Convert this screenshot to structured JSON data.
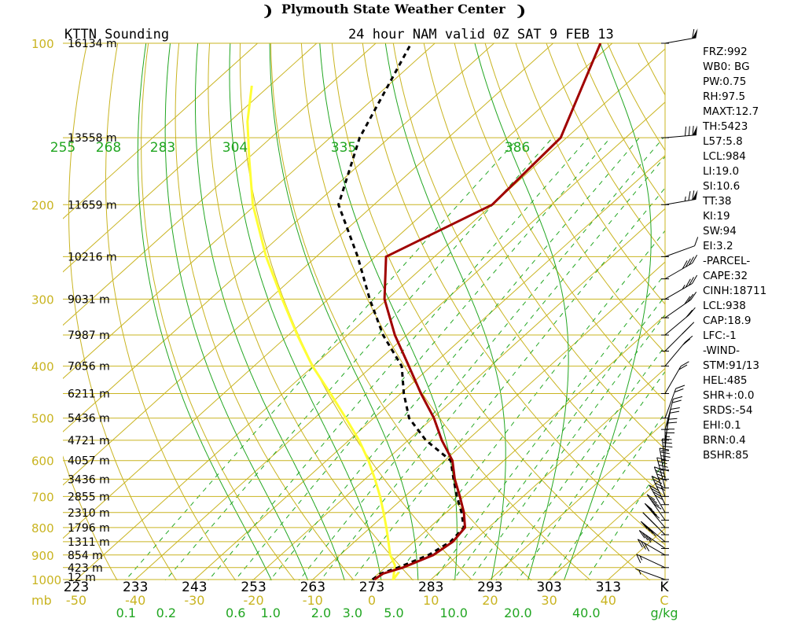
{
  "banner": {
    "title": "Plymouth State Weather Center",
    "left_logo": "❩",
    "right_logo": "❩"
  },
  "colors": {
    "isobar": "#c9b421",
    "isotherm": "#c9b421",
    "dry_adiabat": "#c9b421",
    "moist_adiabat": "#22a622",
    "mixing_ratio": "#22a622",
    "temperature": "#a00000",
    "dewpoint": "#000000",
    "parcel": "#ffff33",
    "wind": "#000000"
  },
  "chart_data": {
    "type": "skew-t",
    "title": "KTTN Sounding",
    "subtitle": "24 hour NAM valid 0Z SAT 9 FEB 13",
    "temp_axis_unit": "C",
    "mix_axis_unit": "g/kg",
    "pressure_axis_unit": "mb",
    "theta_axis_unit": "K",
    "pressure_labels": [
      {
        "p": 100,
        "text": "100"
      },
      {
        "p": 200,
        "text": "200"
      },
      {
        "p": 300,
        "text": "300"
      },
      {
        "p": 400,
        "text": "400"
      },
      {
        "p": 500,
        "text": "500"
      },
      {
        "p": 600,
        "text": "600"
      },
      {
        "p": 700,
        "text": "700"
      },
      {
        "p": 800,
        "text": "800"
      },
      {
        "p": 900,
        "text": "900"
      },
      {
        "p": 1000,
        "text": "1000"
      }
    ],
    "isobars_mb": [
      100,
      150,
      200,
      250,
      300,
      350,
      400,
      450,
      500,
      550,
      600,
      650,
      700,
      750,
      800,
      850,
      900,
      950,
      1000
    ],
    "height_labels": [
      {
        "p": 100,
        "text": "16134 m"
      },
      {
        "p": 150,
        "text": "13558 m"
      },
      {
        "p": 200,
        "text": "11659 m"
      },
      {
        "p": 250,
        "text": "10216 m"
      },
      {
        "p": 300,
        "text": "9031 m"
      },
      {
        "p": 350,
        "text": "7987 m"
      },
      {
        "p": 400,
        "text": "7056 m"
      },
      {
        "p": 450,
        "text": "6211 m"
      },
      {
        "p": 500,
        "text": "5436 m"
      },
      {
        "p": 550,
        "text": "4721 m"
      },
      {
        "p": 600,
        "text": "4057 m"
      },
      {
        "p": 650,
        "text": "3436 m"
      },
      {
        "p": 700,
        "text": "2855 m"
      },
      {
        "p": 750,
        "text": "2310 m"
      },
      {
        "p": 800,
        "text": "1796 m"
      },
      {
        "p": 850,
        "text": "1311 m"
      },
      {
        "p": 900,
        "text": "854 m"
      },
      {
        "p": 950,
        "text": "423 m"
      },
      {
        "p": 1000,
        "text": "12 m"
      }
    ],
    "temp_ticks_c": [
      {
        "t": -50,
        "text": "-50"
      },
      {
        "t": -40,
        "text": "-40"
      },
      {
        "t": -30,
        "text": "-30"
      },
      {
        "t": -20,
        "text": "-20"
      },
      {
        "t": -10,
        "text": "-10"
      },
      {
        "t": 0,
        "text": "0"
      },
      {
        "t": 10,
        "text": "10"
      },
      {
        "t": 20,
        "text": "20"
      },
      {
        "t": 30,
        "text": "30"
      },
      {
        "t": 40,
        "text": "40"
      }
    ],
    "isotherms_c": [
      -120,
      -110,
      -100,
      -90,
      -80,
      -70,
      -60,
      -50,
      -40,
      -30,
      -20,
      -10,
      0,
      10,
      20,
      30,
      40,
      50
    ],
    "mixing_ratio_ticks": [
      {
        "w": 0.1,
        "text": "0.1"
      },
      {
        "w": 0.2,
        "text": "0.2"
      },
      {
        "w": 0.6,
        "text": "0.6"
      },
      {
        "w": 1.0,
        "text": "1.0"
      },
      {
        "w": 2.0,
        "text": "2.0"
      },
      {
        "w": 3.0,
        "text": "3.0"
      },
      {
        "w": 5.0,
        "text": "5.0"
      },
      {
        "w": 10.0,
        "text": "10.0"
      },
      {
        "w": 20.0,
        "text": "20.0"
      },
      {
        "w": 40.0,
        "text": "40.0"
      }
    ],
    "mixing_lines_gkg": [
      0.1,
      0.2,
      0.4,
      0.6,
      1.0,
      1.5,
      2.0,
      3.0,
      5.0,
      8.0,
      10.0,
      12.0,
      16.0,
      20.0,
      28.0,
      40.0
    ],
    "theta_ticks_k": [
      {
        "k": 223,
        "text": "223"
      },
      {
        "k": 233,
        "text": "233"
      },
      {
        "k": 243,
        "text": "243"
      },
      {
        "k": 253,
        "text": "253"
      },
      {
        "k": 263,
        "text": "263"
      },
      {
        "k": 273,
        "text": "273"
      },
      {
        "k": 283,
        "text": "283"
      },
      {
        "k": 293,
        "text": "293"
      },
      {
        "k": 303,
        "text": "303"
      },
      {
        "k": 313,
        "text": "313"
      }
    ],
    "dry_adiabats_k": [
      230,
      240,
      250,
      260,
      270,
      280,
      290,
      300,
      310,
      320,
      330,
      340,
      350,
      360,
      370,
      380,
      390,
      400,
      410,
      420,
      430,
      440,
      450,
      460,
      470,
      480,
      490,
      500,
      510
    ],
    "moist_adiabats_k": [
      {
        "thetae": 255,
        "text": "255"
      },
      {
        "thetae": 268,
        "text": "268"
      },
      {
        "thetae": 283,
        "text": "283"
      },
      {
        "thetae": 304,
        "text": "304"
      },
      {
        "thetae": 335,
        "text": "335"
      },
      {
        "thetae": 386,
        "text": "386"
      }
    ],
    "temperature_profile": [
      {
        "p": 1000,
        "t": 0.4
      },
      {
        "p": 975,
        "t": 0.8
      },
      {
        "p": 950,
        "t": 3.0
      },
      {
        "p": 900,
        "t": 5.8
      },
      {
        "p": 850,
        "t": 6.6
      },
      {
        "p": 800,
        "t": 6.0
      },
      {
        "p": 750,
        "t": 3.0
      },
      {
        "p": 700,
        "t": -0.7
      },
      {
        "p": 650,
        "t": -4.8
      },
      {
        "p": 600,
        "t": -8.7
      },
      {
        "p": 550,
        "t": -14.3
      },
      {
        "p": 500,
        "t": -19.8
      },
      {
        "p": 450,
        "t": -26.6
      },
      {
        "p": 400,
        "t": -33.8
      },
      {
        "p": 350,
        "t": -42.0
      },
      {
        "p": 300,
        "t": -50.5
      },
      {
        "p": 250,
        "t": -58.2
      },
      {
        "p": 200,
        "t": -50.0
      },
      {
        "p": 150,
        "t": -51.0
      },
      {
        "p": 100,
        "t": -62.0
      }
    ],
    "dewpoint_profile": [
      {
        "p": 1000,
        "t": 0.1
      },
      {
        "p": 975,
        "t": 0.4
      },
      {
        "p": 950,
        "t": 2.2
      },
      {
        "p": 900,
        "t": 5.0
      },
      {
        "p": 850,
        "t": 6.2
      },
      {
        "p": 800,
        "t": 5.8
      },
      {
        "p": 750,
        "t": 2.6
      },
      {
        "p": 700,
        "t": -1.2
      },
      {
        "p": 650,
        "t": -5.0
      },
      {
        "p": 600,
        "t": -9.0
      },
      {
        "p": 550,
        "t": -17.0
      },
      {
        "p": 500,
        "t": -24.0
      },
      {
        "p": 450,
        "t": -29.5
      },
      {
        "p": 400,
        "t": -35.0
      },
      {
        "p": 350,
        "t": -44.0
      },
      {
        "p": 300,
        "t": -53.0
      },
      {
        "p": 250,
        "t": -63.0
      },
      {
        "p": 200,
        "t": -76.0
      },
      {
        "p": 150,
        "t": -85.0
      },
      {
        "p": 100,
        "t": -94.0
      }
    ],
    "parcel_profile": [
      {
        "p": 970,
        "t": 3.2
      },
      {
        "p": 1000,
        "t": 3.6
      },
      {
        "p": 940,
        "t": 1.2
      },
      {
        "p": 900,
        "t": -1.5
      },
      {
        "p": 850,
        "t": -4.3
      },
      {
        "p": 800,
        "t": -7.3
      },
      {
        "p": 750,
        "t": -10.6
      },
      {
        "p": 700,
        "t": -14.2
      },
      {
        "p": 650,
        "t": -18.3
      },
      {
        "p": 600,
        "t": -22.9
      },
      {
        "p": 550,
        "t": -28.3
      },
      {
        "p": 500,
        "t": -34.7
      },
      {
        "p": 450,
        "t": -41.9
      },
      {
        "p": 400,
        "t": -50.1
      },
      {
        "p": 350,
        "t": -58.5
      },
      {
        "p": 300,
        "t": -67.8
      },
      {
        "p": 250,
        "t": -78.5
      },
      {
        "p": 200,
        "t": -90.5
      },
      {
        "p": 165,
        "t": -99.5
      },
      {
        "p": 140,
        "t": -107.0
      },
      {
        "p": 120,
        "t": -113.0
      }
    ],
    "wind_barbs": [
      {
        "p": 100,
        "dir": 280,
        "kt": 60
      },
      {
        "p": 150,
        "dir": 275,
        "kt": 80
      },
      {
        "p": 200,
        "dir": 280,
        "kt": 75
      },
      {
        "p": 250,
        "dir": 290,
        "kt": 10
      },
      {
        "p": 275,
        "dir": 300,
        "kt": 40
      },
      {
        "p": 300,
        "dir": 300,
        "kt": 35
      },
      {
        "p": 325,
        "dir": 305,
        "kt": 30
      },
      {
        "p": 350,
        "dir": 310,
        "kt": 20
      },
      {
        "p": 375,
        "dir": 315,
        "kt": 25
      },
      {
        "p": 400,
        "dir": 320,
        "kt": 20
      },
      {
        "p": 450,
        "dir": 330,
        "kt": 20
      },
      {
        "p": 500,
        "dir": 340,
        "kt": 20
      },
      {
        "p": 525,
        "dir": 345,
        "kt": 20
      },
      {
        "p": 550,
        "dir": 350,
        "kt": 20
      },
      {
        "p": 575,
        "dir": 355,
        "kt": 20
      },
      {
        "p": 600,
        "dir": 0,
        "kt": 25
      },
      {
        "p": 625,
        "dir": 5,
        "kt": 30
      },
      {
        "p": 650,
        "dir": 10,
        "kt": 35
      },
      {
        "p": 675,
        "dir": 15,
        "kt": 40
      },
      {
        "p": 700,
        "dir": 20,
        "kt": 40
      },
      {
        "p": 725,
        "dir": 25,
        "kt": 40
      },
      {
        "p": 750,
        "dir": 30,
        "kt": 40
      },
      {
        "p": 775,
        "dir": 35,
        "kt": 40
      },
      {
        "p": 800,
        "dir": 40,
        "kt": 40
      },
      {
        "p": 825,
        "dir": 45,
        "kt": 40
      },
      {
        "p": 850,
        "dir": 50,
        "kt": 40
      },
      {
        "p": 875,
        "dir": 55,
        "kt": 35
      },
      {
        "p": 900,
        "dir": 60,
        "kt": 30
      },
      {
        "p": 950,
        "dir": 65,
        "kt": 15
      },
      {
        "p": 1000,
        "dir": 70,
        "kt": 5
      }
    ],
    "stats": [
      "FRZ:992",
      "WB0: BG",
      "PW:0.75",
      "RH:97.5",
      "MAXT:12.7",
      "TH:5423",
      "L57:5.8",
      "LCL:984",
      "LI:19.0",
      "SI:10.6",
      "TT:38",
      "KI:19",
      "SW:94",
      "EI:3.2",
      "-PARCEL-",
      "CAPE:32",
      "CINH:18711",
      "LCL:938",
      "CAP:18.9",
      "LFC:-1",
      "-WIND-",
      "STM:91/13",
      "HEL:485",
      "SHR+:0.0",
      "SRDS:-54",
      "EHI:0.1",
      "BRN:0.4",
      "BSHR:85"
    ]
  }
}
